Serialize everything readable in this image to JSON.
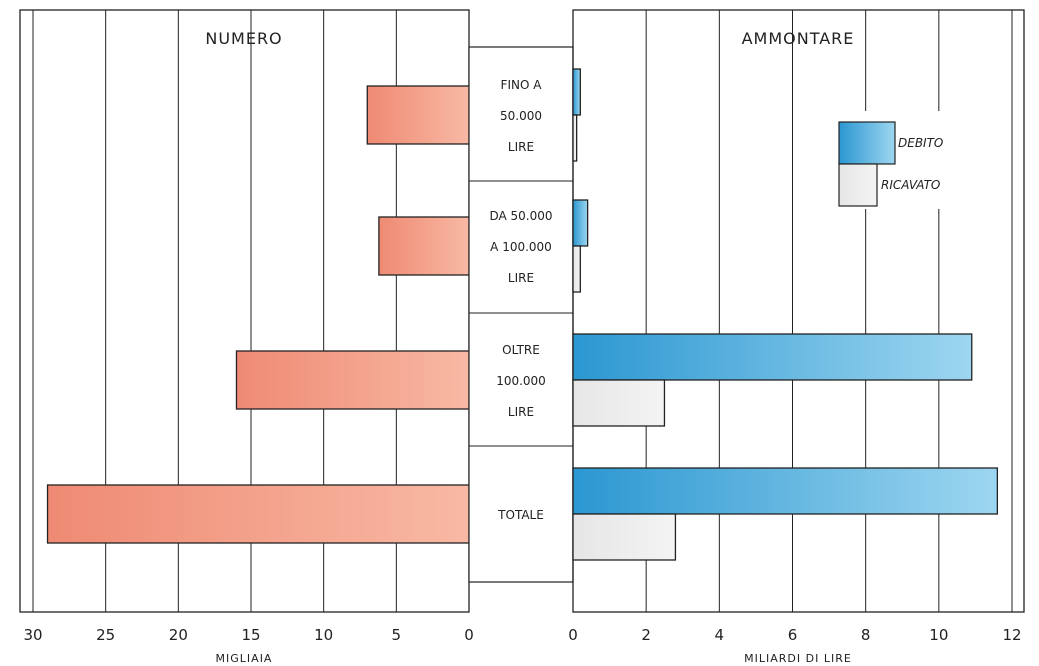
{
  "chart_data": [
    {
      "type": "bar",
      "orientation": "horizontal",
      "title": "NUMERO",
      "xlabel": "MIGLIAIA",
      "x_reversed": true,
      "xlim": [
        0,
        30
      ],
      "xticks": [
        30,
        25,
        20,
        15,
        10,
        5,
        0
      ],
      "grid": true,
      "categories": [
        "FINO A 50.000 LIRE",
        "DA 50.000 A 100.000 LIRE",
        "OLTRE 100.000 LIRE",
        "TOTALE"
      ],
      "values": [
        7,
        6.2,
        16,
        29
      ],
      "color": "#f4a48c"
    },
    {
      "type": "bar",
      "orientation": "horizontal",
      "title": "AMMONTARE",
      "xlabel": "MILIARDI DI LIRE",
      "xlim": [
        0,
        12
      ],
      "xticks": [
        0,
        2,
        4,
        6,
        8,
        10,
        12
      ],
      "grid": true,
      "legend_position": "top-right",
      "categories": [
        "FINO A 50.000 LIRE",
        "DA 50.000 A 100.000 LIRE",
        "OLTRE 100.000 LIRE",
        "TOTALE"
      ],
      "series": [
        {
          "name": "DEBITO",
          "values": [
            0.2,
            0.4,
            10.9,
            11.6
          ],
          "color": "#4eb0e0"
        },
        {
          "name": "RICAVATO",
          "values": [
            0.1,
            0.2,
            2.5,
            2.8
          ],
          "color": "#ededed"
        }
      ]
    }
  ],
  "category_labels": [
    [
      "FINO A",
      "50.000",
      "LIRE"
    ],
    [
      "DA 50.000",
      "A 100.000",
      "LIRE"
    ],
    [
      "OLTRE",
      "100.000",
      "LIRE"
    ],
    [
      "TOTALE"
    ]
  ]
}
